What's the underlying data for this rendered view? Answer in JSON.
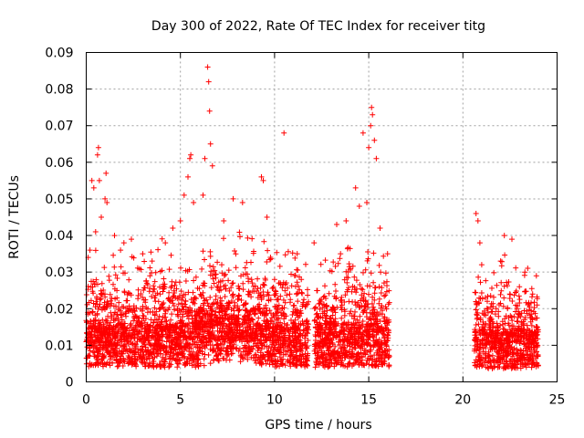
{
  "chart_data": {
    "type": "scatter",
    "title": "Day 300 of 2022, Rate Of TEC Index for receiver titg",
    "xlabel": "GPS time / hours",
    "ylabel": "ROTI / TECUs",
    "xlim": [
      0,
      25
    ],
    "ylim": [
      0,
      0.09
    ],
    "x_ticks": [
      "0",
      "5",
      "10",
      "15",
      "20",
      "25"
    ],
    "y_ticks": [
      "0",
      "0.01",
      "0.02",
      "0.03",
      "0.04",
      "0.05",
      "0.06",
      "0.07",
      "0.08",
      "0.09"
    ],
    "grid": true,
    "marker": "+",
    "series": [
      {
        "color": "#ff0000",
        "points": [
          [
            0.1,
            0.034
          ],
          [
            0.2,
            0.036
          ],
          [
            0.3,
            0.055
          ],
          [
            0.4,
            0.053
          ],
          [
            0.5,
            0.041
          ],
          [
            0.6,
            0.062
          ],
          [
            0.65,
            0.064
          ],
          [
            0.7,
            0.055
          ],
          [
            0.8,
            0.045
          ],
          [
            1.0,
            0.05
          ],
          [
            1.05,
            0.057
          ],
          [
            1.1,
            0.049
          ],
          [
            1.5,
            0.04
          ],
          [
            2.0,
            0.038
          ],
          [
            2.4,
            0.039
          ],
          [
            3.0,
            0.035
          ],
          [
            3.5,
            0.033
          ],
          [
            4.2,
            0.038
          ],
          [
            4.6,
            0.042
          ],
          [
            5.0,
            0.044
          ],
          [
            5.2,
            0.051
          ],
          [
            5.4,
            0.056
          ],
          [
            5.5,
            0.061
          ],
          [
            5.55,
            0.062
          ],
          [
            5.7,
            0.049
          ],
          [
            6.2,
            0.051
          ],
          [
            6.3,
            0.061
          ],
          [
            6.45,
            0.086
          ],
          [
            6.5,
            0.082
          ],
          [
            6.55,
            0.074
          ],
          [
            6.6,
            0.065
          ],
          [
            6.7,
            0.059
          ],
          [
            7.3,
            0.044
          ],
          [
            7.8,
            0.05
          ],
          [
            8.3,
            0.049
          ],
          [
            9.3,
            0.056
          ],
          [
            9.4,
            0.055
          ],
          [
            9.6,
            0.045
          ],
          [
            10.5,
            0.068
          ],
          [
            11.2,
            0.035
          ],
          [
            12.1,
            0.038
          ],
          [
            13.3,
            0.043
          ],
          [
            13.8,
            0.044
          ],
          [
            14.3,
            0.053
          ],
          [
            14.5,
            0.048
          ],
          [
            14.7,
            0.068
          ],
          [
            14.9,
            0.049
          ],
          [
            15.0,
            0.064
          ],
          [
            15.1,
            0.07
          ],
          [
            15.15,
            0.075
          ],
          [
            15.2,
            0.073
          ],
          [
            15.3,
            0.066
          ],
          [
            15.4,
            0.061
          ],
          [
            15.6,
            0.042
          ],
          [
            16.0,
            0.035
          ],
          [
            20.7,
            0.046
          ],
          [
            20.8,
            0.044
          ],
          [
            20.9,
            0.038
          ],
          [
            21.0,
            0.032
          ],
          [
            22.0,
            0.033
          ],
          [
            22.2,
            0.04
          ],
          [
            22.6,
            0.039
          ],
          [
            23.0,
            0.026
          ],
          [
            23.7,
            0.024
          ],
          [
            23.9,
            0.029
          ]
        ]
      }
    ],
    "data_segments": [
      [
        0,
        6.6
      ],
      [
        6.6,
        11.8
      ],
      [
        12.1,
        16.1
      ],
      [
        20.6,
        24.0
      ]
    ]
  }
}
